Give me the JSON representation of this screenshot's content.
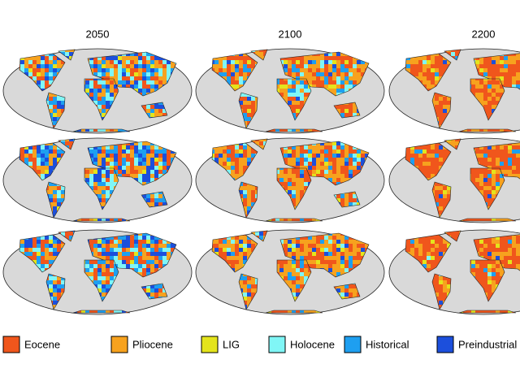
{
  "panels": {
    "column_titles": [
      "2050",
      "2100",
      "2200"
    ]
  },
  "legend": [
    {
      "label": "Eocene",
      "color": "#f0561c"
    },
    {
      "label": "Pliocene",
      "color": "#f7a21e"
    },
    {
      "label": "LIG",
      "color": "#e4e41c"
    },
    {
      "label": "Holocene",
      "color": "#80f6f6"
    },
    {
      "label": "Historical",
      "color": "#1e9ff0"
    },
    {
      "label": "Preindustrial",
      "color": "#1c4fdc"
    }
  ]
}
